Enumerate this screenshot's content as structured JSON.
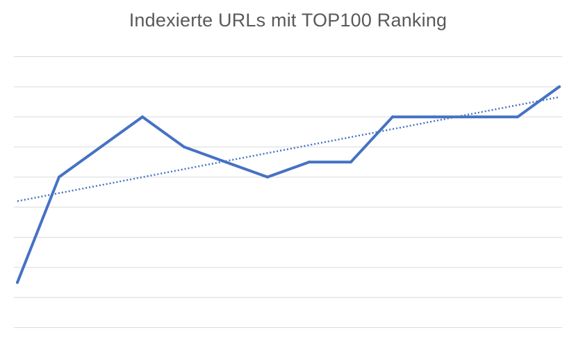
{
  "chart_data": {
    "type": "line",
    "title": "Indexierte URLs mit TOP100 Ranking",
    "xlabel": "",
    "ylabel": "",
    "ylim": [
      0,
      9
    ],
    "grid": true,
    "x": [
      1,
      2,
      3,
      4,
      5,
      6,
      7,
      8,
      9,
      10,
      11,
      12,
      13,
      14
    ],
    "series": [
      {
        "values": [
          1.5,
          5,
          6,
          7,
          6,
          5.5,
          5,
          5.5,
          5.5,
          7,
          7,
          7,
          7,
          8
        ],
        "color": "#4472C4",
        "style": "solid"
      }
    ],
    "trendline": {
      "type": "linear",
      "color": "#4472C4",
      "style": "dotted"
    }
  }
}
